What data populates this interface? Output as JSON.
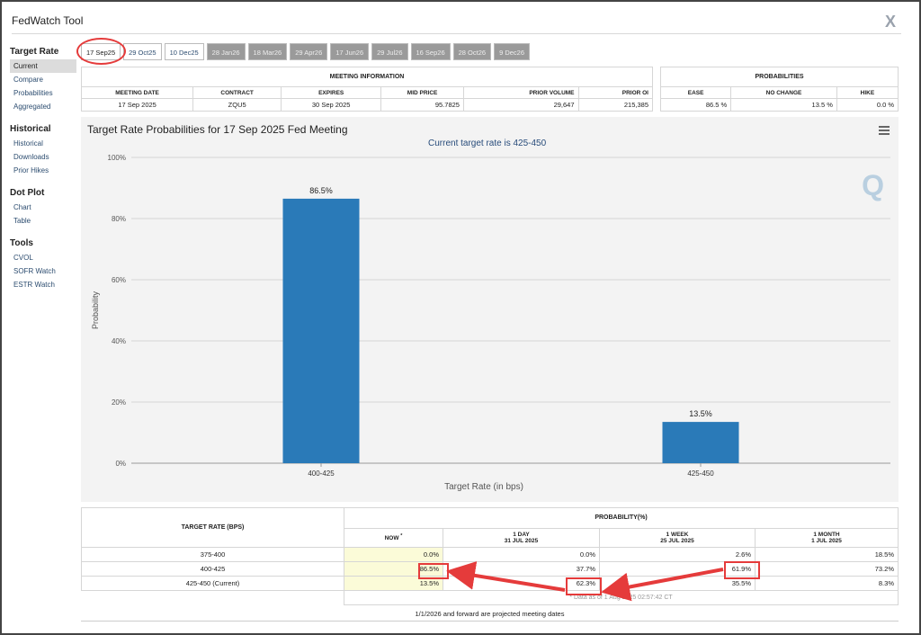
{
  "app": {
    "title": "FedWatch Tool",
    "close_glyph": "X"
  },
  "sidebar": [
    {
      "heading": "Target Rate",
      "items": [
        "Current",
        "Compare",
        "Probabilities",
        "Aggregated"
      ]
    },
    {
      "heading": "Historical",
      "items": [
        "Historical",
        "Downloads",
        "Prior Hikes"
      ]
    },
    {
      "heading": "Dot Plot",
      "items": [
        "Chart",
        "Table"
      ]
    },
    {
      "heading": "Tools",
      "items": [
        "CVOL",
        "SOFR Watch",
        "ESTR Watch"
      ]
    }
  ],
  "tabs": [
    "17 Sep25",
    "29 Oct25",
    "10 Dec25",
    "28 Jan26",
    "18 Mar26",
    "29 Apr26",
    "17 Jun26",
    "29 Jul26",
    "16 Sep26",
    "28 Oct26",
    "9 Dec26"
  ],
  "meeting_info": {
    "title": "MEETING INFORMATION",
    "headers": [
      "MEETING DATE",
      "CONTRACT",
      "EXPIRES",
      "MID PRICE",
      "PRIOR VOLUME",
      "PRIOR OI"
    ],
    "values": [
      "17 Sep 2025",
      "ZQU5",
      "30 Sep 2025",
      "95.7825",
      "29,647",
      "215,385"
    ]
  },
  "probabilities": {
    "title": "PROBABILITIES",
    "headers": [
      "EASE",
      "NO CHANGE",
      "HIKE"
    ],
    "values": [
      "86.5 %",
      "13.5 %",
      "0.0 %"
    ]
  },
  "chart": {
    "title": "Target Rate Probabilities for 17 Sep 2025 Fed Meeting",
    "subtitle": "Current target rate is 425-450",
    "logo": "Q"
  },
  "chart_data": {
    "type": "bar",
    "categories": [
      "400-425",
      "425-450"
    ],
    "values": [
      86.5,
      13.5
    ],
    "data_labels": [
      "86.5%",
      "13.5%"
    ],
    "title": "Target Rate Probabilities for 17 Sep 2025 Fed Meeting",
    "xlabel": "Target Rate (in bps)",
    "ylabel": "Probability",
    "ylim": [
      0,
      100
    ],
    "yticks": [
      "0%",
      "20%",
      "40%",
      "60%",
      "80%",
      "100%"
    ],
    "color": "#2a7ab8",
    "grid": true
  },
  "table": {
    "rate_header": "TARGET RATE (BPS)",
    "prob_header": "PROBABILITY(%)",
    "columns": [
      {
        "label": "NOW",
        "sub": "",
        "mark": "*"
      },
      {
        "label": "1 DAY",
        "sub": "31 JUL 2025"
      },
      {
        "label": "1 WEEK",
        "sub": "25 JUL 2025"
      },
      {
        "label": "1 MONTH",
        "sub": "1 JUL 2025"
      }
    ],
    "rows": [
      {
        "rate": "375-400",
        "cells": [
          "0.0%",
          "0.0%",
          "2.6%",
          "18.5%"
        ]
      },
      {
        "rate": "400-425",
        "cells": [
          "86.5%",
          "37.7%",
          "61.9%",
          "73.2%"
        ]
      },
      {
        "rate": "425-450 (Current)",
        "cells": [
          "13.5%",
          "62.3%",
          "35.5%",
          "8.3%"
        ]
      }
    ],
    "footnote": "* Data as of 1 Aug 2025 02:57:42 CT",
    "projection_note": "1/1/2026 and forward are projected meeting dates"
  },
  "colors": {
    "bar": "#2a7ab8",
    "highlight": "#e53b3b",
    "now_column": "#fbfbd8"
  }
}
